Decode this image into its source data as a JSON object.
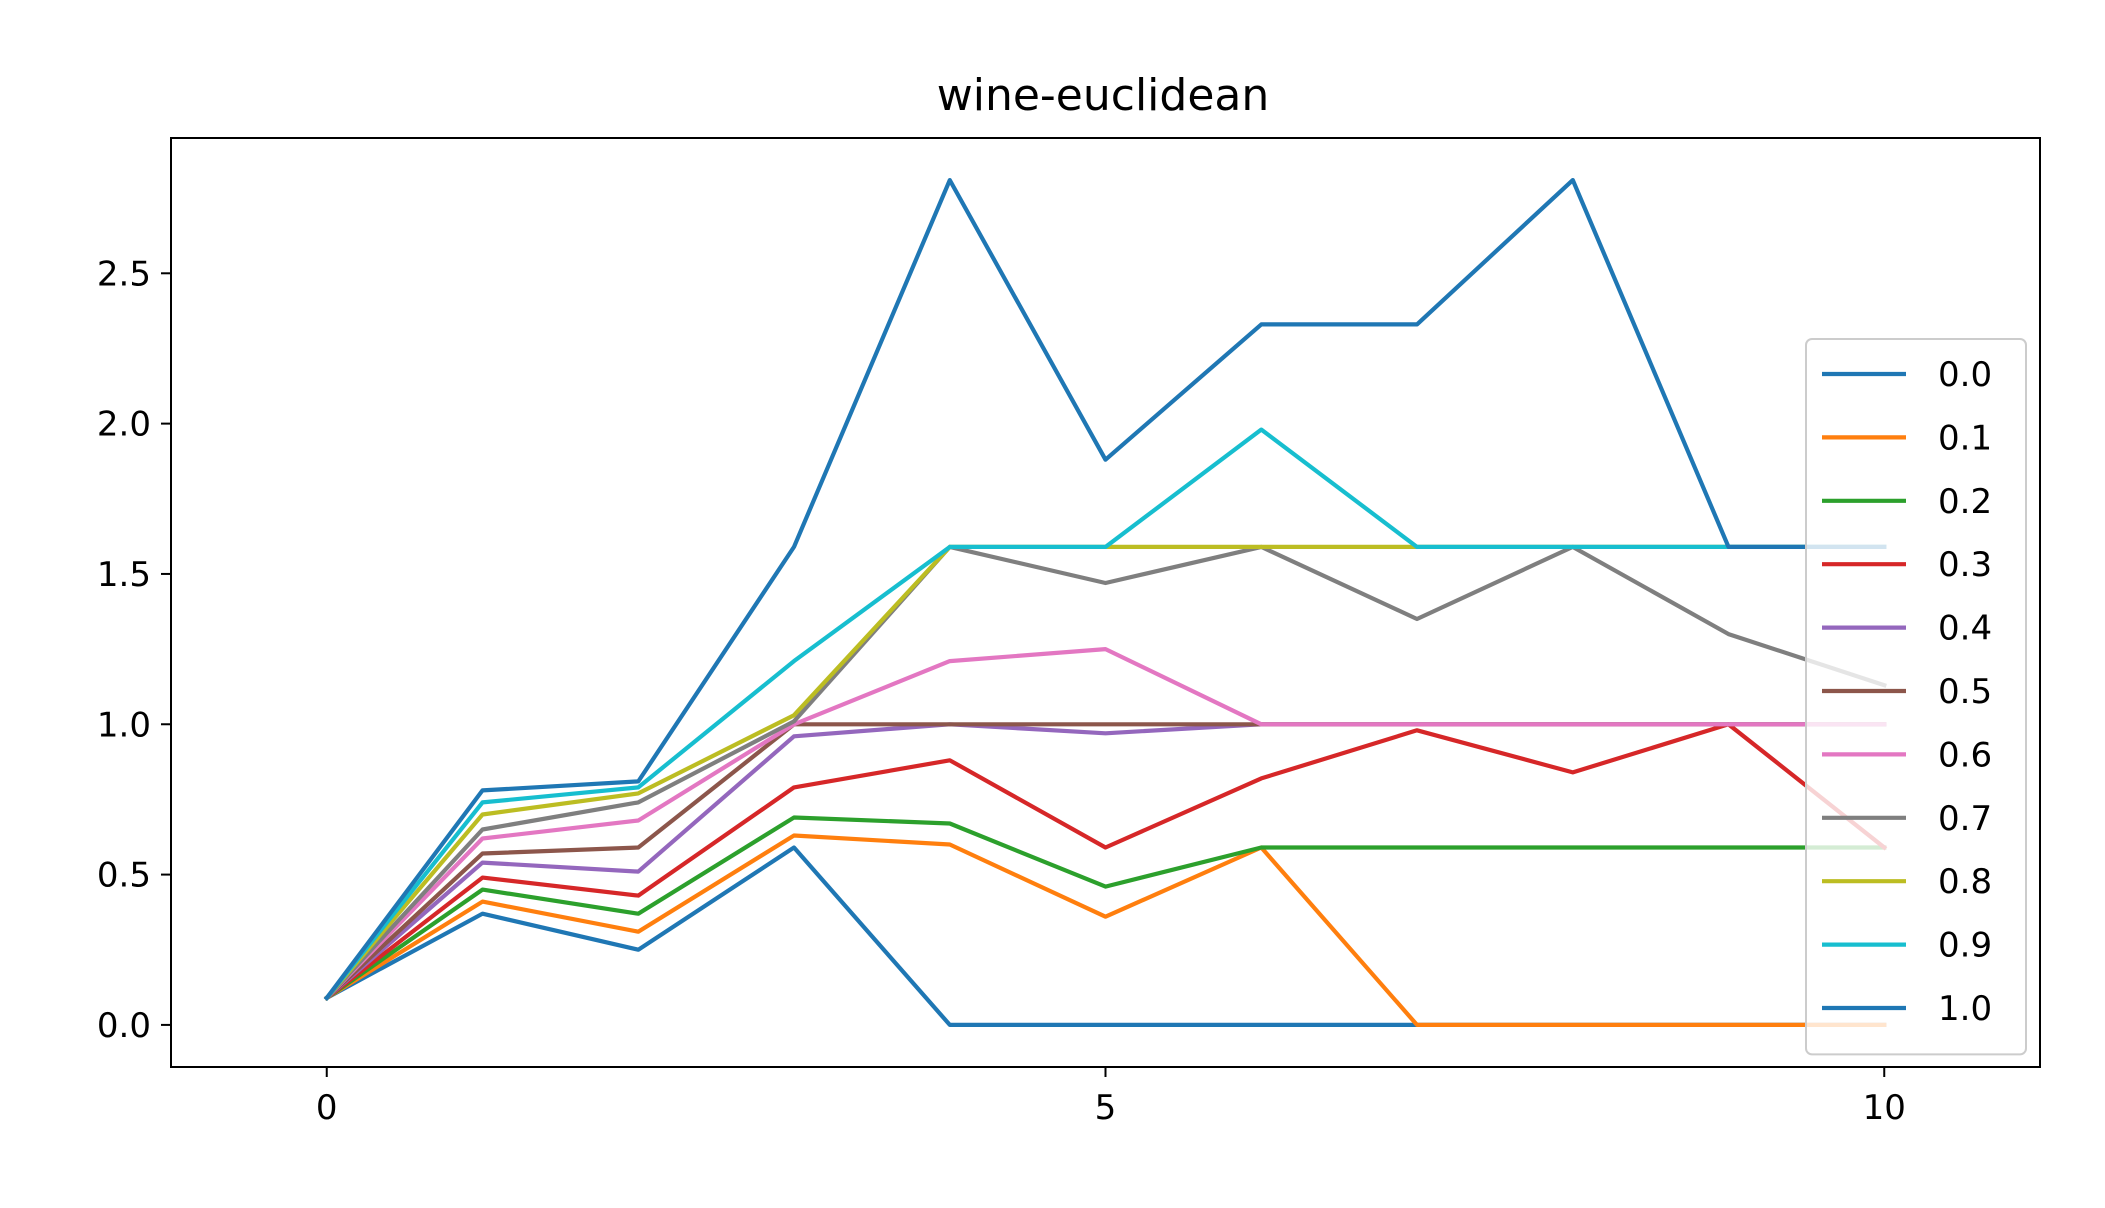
{
  "chart_data": {
    "type": "line",
    "title": "wine-euclidean",
    "xlabel": "",
    "ylabel": "",
    "x": [
      0,
      1,
      2,
      3,
      4,
      5,
      6,
      7,
      8,
      9,
      10
    ],
    "xlim": [
      -1,
      11
    ],
    "ylim": [
      -0.14,
      2.95
    ],
    "xticks": [
      0,
      5,
      10
    ],
    "xtick_labels": [
      "0",
      "5",
      "10"
    ],
    "yticks": [
      0.0,
      0.5,
      1.0,
      1.5,
      2.0,
      2.5
    ],
    "ytick_labels": [
      "0.0",
      "0.5",
      "1.0",
      "1.5",
      "2.0",
      "2.5"
    ],
    "grid": false,
    "legend_position": "right",
    "series": [
      {
        "name": "0.0",
        "color": "#1f77b4",
        "values": [
          0.09,
          0.37,
          0.25,
          0.59,
          0.0,
          0.0,
          0.0,
          0.0,
          0.0,
          0.0,
          0.0
        ]
      },
      {
        "name": "0.1",
        "color": "#ff7f0e",
        "values": [
          0.09,
          0.41,
          0.31,
          0.63,
          0.6,
          0.36,
          0.59,
          0.0,
          0.0,
          0.0,
          0.0
        ]
      },
      {
        "name": "0.2",
        "color": "#2ca02c",
        "values": [
          0.09,
          0.45,
          0.37,
          0.69,
          0.67,
          0.46,
          0.59,
          0.59,
          0.59,
          0.59,
          0.59
        ]
      },
      {
        "name": "0.3",
        "color": "#d62728",
        "values": [
          0.09,
          0.49,
          0.43,
          0.79,
          0.88,
          0.59,
          0.82,
          0.98,
          0.84,
          1.0,
          0.59
        ]
      },
      {
        "name": "0.4",
        "color": "#9467bd",
        "values": [
          0.09,
          0.54,
          0.51,
          0.96,
          1.0,
          0.97,
          1.0,
          1.0,
          1.0,
          1.0,
          1.0
        ]
      },
      {
        "name": "0.5",
        "color": "#8c564b",
        "values": [
          0.09,
          0.57,
          0.59,
          1.0,
          1.0,
          1.0,
          1.0,
          1.0,
          1.0,
          1.0,
          1.0
        ]
      },
      {
        "name": "0.6",
        "color": "#e377c2",
        "values": [
          0.09,
          0.62,
          0.68,
          1.0,
          1.21,
          1.25,
          1.0,
          1.0,
          1.0,
          1.0,
          1.0
        ]
      },
      {
        "name": "0.7",
        "color": "#7f7f7f",
        "values": [
          0.09,
          0.65,
          0.74,
          1.01,
          1.59,
          1.47,
          1.59,
          1.35,
          1.59,
          1.3,
          1.13
        ]
      },
      {
        "name": "0.8",
        "color": "#bcbd22",
        "values": [
          0.09,
          0.7,
          0.77,
          1.03,
          1.59,
          1.59,
          1.59,
          1.59,
          1.59,
          1.59,
          1.59
        ]
      },
      {
        "name": "0.9",
        "color": "#17becf",
        "values": [
          0.09,
          0.74,
          0.79,
          1.21,
          1.59,
          1.59,
          1.98,
          1.59,
          1.59,
          1.59,
          1.59
        ]
      },
      {
        "name": "1.0",
        "color": "#1f77b4",
        "values": [
          0.09,
          0.78,
          0.81,
          1.59,
          2.81,
          1.88,
          2.33,
          2.33,
          2.81,
          1.59,
          1.59
        ]
      }
    ]
  }
}
